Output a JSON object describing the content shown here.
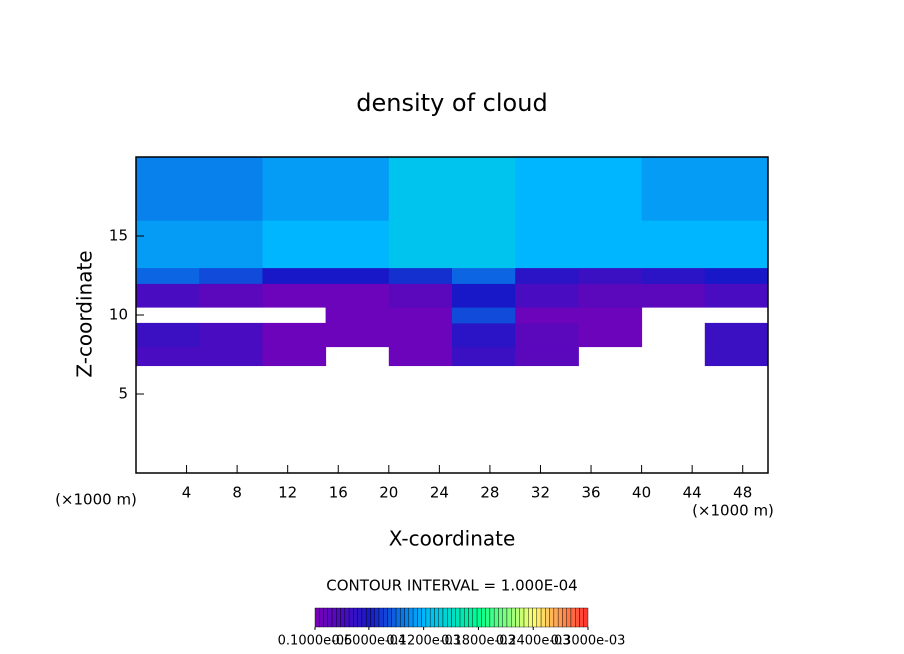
{
  "chart_data": {
    "type": "heatmap",
    "title": "density of cloud",
    "x_label": "X-coordinate",
    "y_label": "Z-coordinate",
    "x_unit_label": "(×1000 m)",
    "x_unit_label_right": "(×1000 m)",
    "note": "CONTOUR INTERVAL = 1.000E-04",
    "xlim": [
      0,
      50
    ],
    "ylim": [
      0,
      20
    ],
    "xticks": [
      4,
      8,
      12,
      16,
      20,
      24,
      28,
      32,
      36,
      40,
      44,
      48
    ],
    "yticks": [
      5,
      10,
      15
    ],
    "x_edges": [
      0,
      5,
      10,
      15,
      20,
      25,
      30,
      35,
      40,
      45,
      50
    ],
    "y_edges": [
      6.8,
      8,
      9.5,
      10.5,
      12,
      13,
      16,
      20
    ],
    "values": [
      [
        3e-05,
        3e-05,
        1e-05,
        null,
        1e-05,
        4e-05,
        2e-05,
        null,
        null,
        4e-05
      ],
      [
        4e-05,
        3e-05,
        1e-05,
        1e-05,
        1e-05,
        5e-05,
        2e-05,
        1e-05,
        null,
        4e-05
      ],
      [
        null,
        null,
        null,
        1e-05,
        1e-05,
        8e-05,
        1e-05,
        1e-05,
        null,
        null
      ],
      [
        3e-05,
        2e-05,
        1e-05,
        1e-05,
        2e-05,
        6e-05,
        3e-05,
        2e-05,
        2e-05,
        3e-05
      ],
      [
        9e-05,
        8e-05,
        6e-05,
        6e-05,
        7e-05,
        9e-05,
        5e-05,
        4e-05,
        5e-05,
        6e-05
      ],
      [
        0.00011,
        0.00011,
        0.00012,
        0.00012,
        0.00013,
        0.00013,
        0.00012,
        0.00012,
        0.00012,
        0.00012
      ],
      [
        0.0001,
        0.0001,
        0.00011,
        0.00011,
        0.00013,
        0.00013,
        0.00012,
        0.00012,
        0.00011,
        0.00011
      ]
    ],
    "colormap": [
      "#7a00b8",
      "#1818c8",
      "#00b8ff",
      "#00ff90",
      "#ffff70",
      "#ff3030"
    ],
    "clim": [
      1e-06,
      0.0003
    ],
    "cticks": [
      {
        "value": 1e-06,
        "label": "0.1000e-05"
      },
      {
        "value": 6e-05,
        "label": "0.6000e-04"
      },
      {
        "value": 0.00012,
        "label": "0.1200e-03"
      },
      {
        "value": 0.00018,
        "label": "0.1800e-03"
      },
      {
        "value": 0.00024,
        "label": "0.2400e-03"
      },
      {
        "value": 0.0003,
        "label": "0.3000e-03"
      }
    ]
  }
}
